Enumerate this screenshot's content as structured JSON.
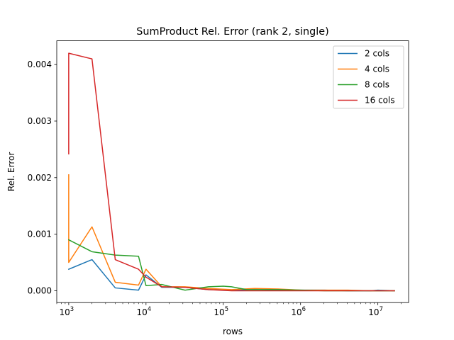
{
  "chart_data": {
    "type": "line",
    "title": "SumProduct Rel. Error (rank 2, single)",
    "xlabel": "rows",
    "ylabel": "Rel. Error",
    "xscale": "log",
    "xlim": [
      700,
      25000000
    ],
    "ylim": [
      -0.00021,
      0.00442
    ],
    "xticks": [
      {
        "value": 1000,
        "base": "10",
        "exp": "3"
      },
      {
        "value": 10000,
        "base": "10",
        "exp": "4"
      },
      {
        "value": 100000,
        "base": "10",
        "exp": "5"
      },
      {
        "value": 1000000,
        "base": "10",
        "exp": "6"
      },
      {
        "value": 10000000,
        "base": "10",
        "exp": "7"
      }
    ],
    "yticks": [
      {
        "value": 0.0,
        "label": "0.000"
      },
      {
        "value": 0.001,
        "label": "0.001"
      },
      {
        "value": 0.002,
        "label": "0.002"
      },
      {
        "value": 0.003,
        "label": "0.003"
      },
      {
        "value": 0.004,
        "label": "0.004"
      }
    ],
    "grid": false,
    "legend_position": "top-right",
    "series": [
      {
        "name": "2 cols",
        "color": "#1f77b4",
        "points": [
          [
            1000,
            0.00038
          ],
          [
            2000,
            0.00055
          ],
          [
            4000,
            5e-05
          ],
          [
            8000,
            1e-05
          ],
          [
            10000,
            0.00028
          ],
          [
            16000,
            6e-05
          ],
          [
            32000,
            6e-05
          ],
          [
            64000,
            2e-05
          ],
          [
            128000,
            1e-05
          ],
          [
            256000,
            2e-05
          ],
          [
            512000,
            1e-05
          ],
          [
            1024000,
            1e-05
          ],
          [
            2048000,
            1e-05
          ],
          [
            4096000,
            0.0
          ],
          [
            8192000,
            0.0
          ],
          [
            10000000,
            1e-05
          ],
          [
            16384000,
            0.0
          ]
        ]
      },
      {
        "name": "4 cols",
        "color": "#ff7f0e",
        "points": [
          [
            1000,
            0.00205
          ],
          [
            1000,
            0.0005
          ],
          [
            2000,
            0.00113
          ],
          [
            4000,
            0.00015
          ],
          [
            8000,
            0.0001
          ],
          [
            10000,
            0.00038
          ],
          [
            16000,
            7e-05
          ],
          [
            32000,
            7e-05
          ],
          [
            64000,
            4e-05
          ],
          [
            128000,
            2e-05
          ],
          [
            256000,
            4e-05
          ],
          [
            512000,
            3e-05
          ],
          [
            1024000,
            1e-05
          ],
          [
            2048000,
            1e-05
          ],
          [
            4096000,
            1e-05
          ],
          [
            8192000,
            0.0
          ],
          [
            16384000,
            0.0
          ]
        ]
      },
      {
        "name": "8 cols",
        "color": "#2ca02c",
        "points": [
          [
            1000,
            0.0009
          ],
          [
            2000,
            0.00069
          ],
          [
            4000,
            0.00063
          ],
          [
            8000,
            0.00061
          ],
          [
            10000,
            9e-05
          ],
          [
            16000,
            0.00011
          ],
          [
            32000,
            1e-05
          ],
          [
            64000,
            7e-05
          ],
          [
            100000,
            8e-05
          ],
          [
            128000,
            7e-05
          ],
          [
            200000,
            2e-05
          ],
          [
            512000,
            2e-05
          ],
          [
            1024000,
            1e-05
          ],
          [
            2048000,
            0.0
          ],
          [
            4096000,
            0.0
          ],
          [
            8192000,
            0.0
          ],
          [
            16384000,
            0.0
          ]
        ]
      },
      {
        "name": "16 cols",
        "color": "#d62728",
        "points": [
          [
            1000,
            0.00242
          ],
          [
            1000,
            0.0042
          ],
          [
            2000,
            0.0041
          ],
          [
            4000,
            0.00055
          ],
          [
            8000,
            0.00038
          ],
          [
            10000,
            0.00024
          ],
          [
            16000,
            7e-05
          ],
          [
            32000,
            6e-05
          ],
          [
            64000,
            2e-05
          ],
          [
            128000,
            0.0
          ],
          [
            256000,
            0.0
          ],
          [
            512000,
            0.0
          ],
          [
            1024000,
            0.0
          ],
          [
            2048000,
            0.0
          ],
          [
            4096000,
            0.0
          ],
          [
            8192000,
            0.0
          ],
          [
            16384000,
            0.0
          ]
        ]
      }
    ]
  }
}
